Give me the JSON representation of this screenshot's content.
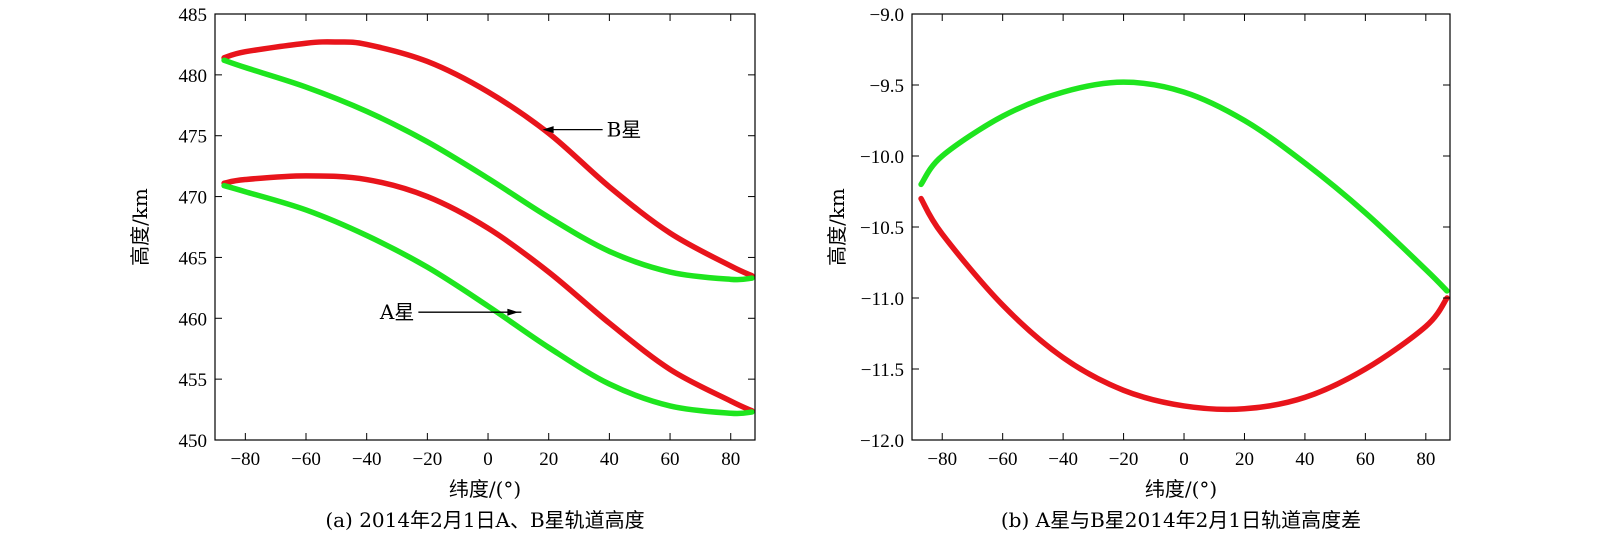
{
  "chart_data": [
    {
      "type": "line",
      "caption": "(a) 2014年2月1日A、B星轨道高度",
      "xlabel": "纬度/(°)",
      "ylabel": "高度/km",
      "xlim": [
        -90,
        88
      ],
      "ylim": [
        450,
        485
      ],
      "xticks": [
        -80,
        -60,
        -40,
        -20,
        0,
        20,
        40,
        60,
        80
      ],
      "yticks": [
        450,
        455,
        460,
        465,
        470,
        475,
        480,
        485
      ],
      "grid": false,
      "colors": {
        "red": "#e8141b",
        "green": "#1ee51e"
      },
      "series": [
        {
          "color": "red",
          "x": [
            -87,
            -80,
            -60,
            -50,
            -40,
            -20,
            0,
            20,
            40,
            60,
            80,
            87
          ],
          "y": [
            481.4,
            481.9,
            482.6,
            482.7,
            482.5,
            481.1,
            478.6,
            475.2,
            470.8,
            467.0,
            464.3,
            463.5
          ]
        },
        {
          "color": "green",
          "x": [
            -87,
            -80,
            -60,
            -40,
            -20,
            0,
            20,
            40,
            60,
            80,
            87
          ],
          "y": [
            481.2,
            480.6,
            479.0,
            477.0,
            474.5,
            471.5,
            468.3,
            465.5,
            463.8,
            463.2,
            463.3
          ]
        },
        {
          "color": "red",
          "x": [
            -87,
            -80,
            -60,
            -40,
            -20,
            0,
            20,
            40,
            60,
            80,
            87
          ],
          "y": [
            471.1,
            471.4,
            471.7,
            471.4,
            470.0,
            467.4,
            463.8,
            459.6,
            455.8,
            453.2,
            452.4
          ]
        },
        {
          "color": "green",
          "x": [
            -87,
            -80,
            -60,
            -40,
            -20,
            0,
            20,
            40,
            60,
            80,
            87
          ],
          "y": [
            470.9,
            470.4,
            468.9,
            466.8,
            464.2,
            461.0,
            457.6,
            454.6,
            452.8,
            452.2,
            452.3
          ]
        }
      ],
      "annotations": [
        {
          "text": "B星",
          "point": [
            18,
            475.5
          ]
        },
        {
          "text": "A星",
          "point": [
            10,
            460.5
          ]
        }
      ]
    },
    {
      "type": "line",
      "caption": "(b) A星与B星2014年2月1日轨道高度差",
      "xlabel": "纬度/(°)",
      "ylabel": "高度/km",
      "xlim": [
        -90,
        88
      ],
      "ylim": [
        -12.0,
        -9.0
      ],
      "xticks": [
        -80,
        -60,
        -40,
        -20,
        0,
        20,
        40,
        60,
        80
      ],
      "yticks": [
        -9.0,
        -9.5,
        -10.0,
        -10.5,
        -11.0,
        -11.5,
        -12.0
      ],
      "ytick_labels": [
        "-9.0",
        "-9.5",
        "-10.0",
        "-10.5",
        "-11.0",
        "-11.5",
        "-12.0"
      ],
      "grid": false,
      "colors": {
        "red": "#e8141b",
        "green": "#1ee51e"
      },
      "series": [
        {
          "color": "green",
          "x": [
            -87,
            -80,
            -60,
            -40,
            -20,
            0,
            20,
            40,
            60,
            80,
            87
          ],
          "y": [
            -10.2,
            -10.0,
            -9.72,
            -9.55,
            -9.48,
            -9.55,
            -9.75,
            -10.05,
            -10.4,
            -10.8,
            -10.95
          ]
        },
        {
          "color": "red",
          "x": [
            -87,
            -80,
            -60,
            -40,
            -20,
            0,
            20,
            40,
            60,
            80,
            87
          ],
          "y": [
            -10.3,
            -10.55,
            -11.05,
            -11.42,
            -11.65,
            -11.76,
            -11.78,
            -11.7,
            -11.5,
            -11.2,
            -11.0
          ]
        }
      ]
    }
  ]
}
